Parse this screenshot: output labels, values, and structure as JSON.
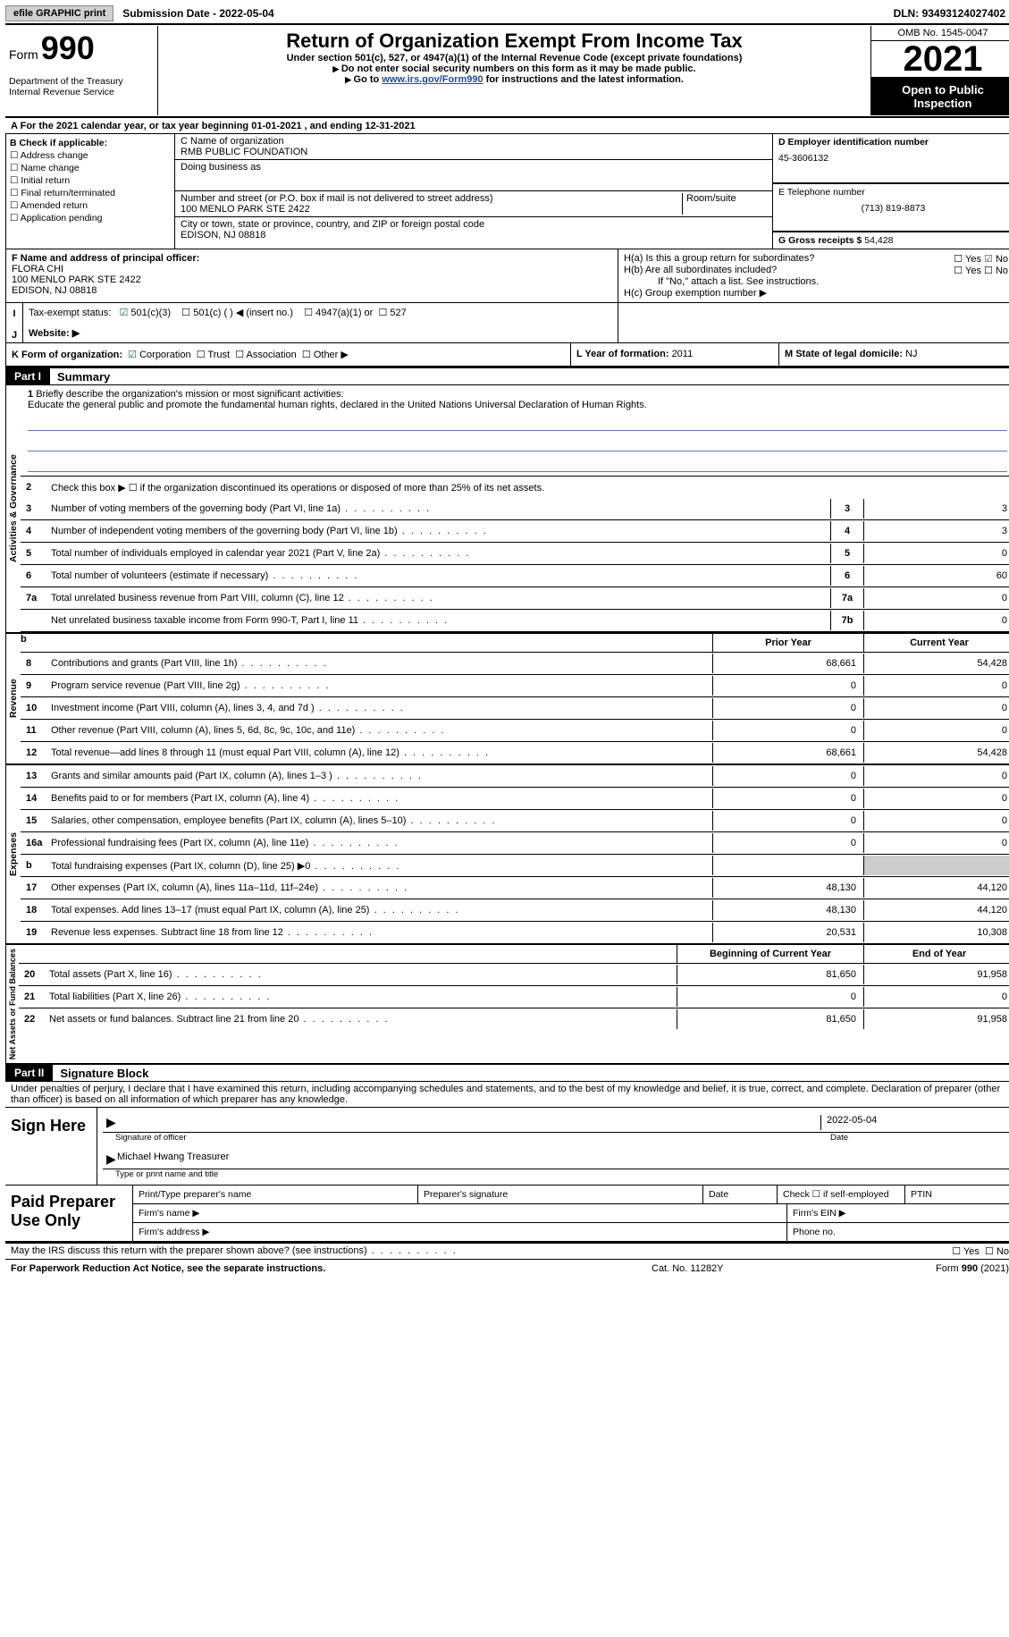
{
  "topbar": {
    "efile_btn": "efile GRAPHIC print",
    "sub_date_label": "Submission Date - ",
    "sub_date": "2022-05-04",
    "dln_label": "DLN: ",
    "dln": "93493124027402"
  },
  "header": {
    "form_label": "Form",
    "form_no": "990",
    "dept": "Department of the Treasury",
    "irs": "Internal Revenue Service",
    "title": "Return of Organization Exempt From Income Tax",
    "subtitle": "Under section 501(c), 527, or 4947(a)(1) of the Internal Revenue Code (except private foundations)",
    "note1": "Do not enter social security numbers on this form as it may be made public.",
    "note2_pre": "Go to ",
    "note2_link": "www.irs.gov/Form990",
    "note2_post": " for instructions and the latest information.",
    "omb": "OMB No. 1545-0047",
    "year": "2021",
    "otp": "Open to Public Inspection"
  },
  "lineA": {
    "text_pre": "For the 2021 calendar year, or tax year beginning ",
    "begin": "01-01-2021",
    "mid": "   , and ending ",
    "end": "12-31-2021"
  },
  "boxB": {
    "label": "B Check if applicable:",
    "items": [
      "Address change",
      "Name change",
      "Initial return",
      "Final return/terminated",
      "Amended return",
      "Application pending"
    ]
  },
  "boxC": {
    "label": "C Name of organization",
    "name": "RMB PUBLIC FOUNDATION",
    "dba_label": "Doing business as",
    "addr_label": "Number and street (or P.O. box if mail is not delivered to street address)",
    "room_label": "Room/suite",
    "addr": "100 MENLO PARK STE 2422",
    "city_label": "City or town, state or province, country, and ZIP or foreign postal code",
    "city": "EDISON, NJ  08818"
  },
  "boxD": {
    "label": "D Employer identification number",
    "ein": "45-3606132"
  },
  "boxE": {
    "label": "E Telephone number",
    "tel": "(713) 819-8873"
  },
  "boxG": {
    "label": "G Gross receipts $ ",
    "val": "54,428"
  },
  "boxF": {
    "label": "F  Name and address of principal officer:",
    "name": "FLORA CHI",
    "addr": "100 MENLO PARK STE 2422",
    "city": "EDISON, NJ  08818"
  },
  "boxH": {
    "a_label": "H(a)  Is this a group return for subordinates?",
    "b_label": "H(b)  Are all subordinates included?",
    "b_note": "If \"No,\" attach a list. See instructions.",
    "c_label": "H(c)  Group exemption number ▶",
    "yes": "Yes",
    "no": "No"
  },
  "status": {
    "label": "Tax-exempt status:",
    "o1": "501(c)(3)",
    "o2": "501(c) (  ) ◀ (insert no.)",
    "o3": "4947(a)(1) or",
    "o4": "527"
  },
  "website": {
    "label": "Website: ▶"
  },
  "korg": {
    "label": "K Form of organization:",
    "o1": "Corporation",
    "o2": "Trust",
    "o3": "Association",
    "o4": "Other ▶",
    "l_label": "L Year of formation: ",
    "l_val": "2011",
    "m_label": "M State of legal domicile: ",
    "m_val": "NJ"
  },
  "part1": {
    "hdr": "Part I",
    "title": "Summary",
    "mission_label": "Briefly describe the organization's mission or most significant activities:",
    "mission": "Educate the general public and promote the fundamental human rights, declared in the United Nations Universal Declaration of Human Rights.",
    "line2": "Check this box ▶ ☐  if the organization discontinued its operations or disposed of more than 25% of its net assets.",
    "rows_ag": [
      {
        "n": "3",
        "d": "Number of voting members of the governing body (Part VI, line 1a)",
        "box": "3",
        "v": "3"
      },
      {
        "n": "4",
        "d": "Number of independent voting members of the governing body (Part VI, line 1b)",
        "box": "4",
        "v": "3"
      },
      {
        "n": "5",
        "d": "Total number of individuals employed in calendar year 2021 (Part V, line 2a)",
        "box": "5",
        "v": "0"
      },
      {
        "n": "6",
        "d": "Total number of volunteers (estimate if necessary)",
        "box": "6",
        "v": "60"
      },
      {
        "n": "7a",
        "d": "Total unrelated business revenue from Part VIII, column (C), line 12",
        "box": "7a",
        "v": "0"
      },
      {
        "n": "",
        "d": "Net unrelated business taxable income from Form 990-T, Part I, line 11",
        "box": "7b",
        "v": "0"
      }
    ],
    "col_prior": "Prior Year",
    "col_current": "Current Year",
    "rows_rev": [
      {
        "n": "8",
        "d": "Contributions and grants (Part VIII, line 1h)",
        "p": "68,661",
        "c": "54,428"
      },
      {
        "n": "9",
        "d": "Program service revenue (Part VIII, line 2g)",
        "p": "0",
        "c": "0"
      },
      {
        "n": "10",
        "d": "Investment income (Part VIII, column (A), lines 3, 4, and 7d )",
        "p": "0",
        "c": "0"
      },
      {
        "n": "11",
        "d": "Other revenue (Part VIII, column (A), lines 5, 6d, 8c, 9c, 10c, and 11e)",
        "p": "0",
        "c": "0"
      },
      {
        "n": "12",
        "d": "Total revenue—add lines 8 through 11 (must equal Part VIII, column (A), line 12)",
        "p": "68,661",
        "c": "54,428"
      }
    ],
    "rows_exp": [
      {
        "n": "13",
        "d": "Grants and similar amounts paid (Part IX, column (A), lines 1–3 )",
        "p": "0",
        "c": "0"
      },
      {
        "n": "14",
        "d": "Benefits paid to or for members (Part IX, column (A), line 4)",
        "p": "0",
        "c": "0"
      },
      {
        "n": "15",
        "d": "Salaries, other compensation, employee benefits (Part IX, column (A), lines 5–10)",
        "p": "0",
        "c": "0"
      },
      {
        "n": "16a",
        "d": "Professional fundraising fees (Part IX, column (A), line 11e)",
        "p": "0",
        "c": "0"
      },
      {
        "n": "b",
        "d": "Total fundraising expenses (Part IX, column (D), line 25) ▶0",
        "p": "GRAY",
        "c": "GRAY"
      },
      {
        "n": "17",
        "d": "Other expenses (Part IX, column (A), lines 11a–11d, 11f–24e)",
        "p": "48,130",
        "c": "44,120"
      },
      {
        "n": "18",
        "d": "Total expenses. Add lines 13–17 (must equal Part IX, column (A), line 25)",
        "p": "48,130",
        "c": "44,120"
      },
      {
        "n": "19",
        "d": "Revenue less expenses. Subtract line 18 from line 12",
        "p": "20,531",
        "c": "10,308"
      }
    ],
    "col_begin": "Beginning of Current Year",
    "col_end": "End of Year",
    "rows_na": [
      {
        "n": "20",
        "d": "Total assets (Part X, line 16)",
        "p": "81,650",
        "c": "91,958"
      },
      {
        "n": "21",
        "d": "Total liabilities (Part X, line 26)",
        "p": "0",
        "c": "0"
      },
      {
        "n": "22",
        "d": "Net assets or fund balances. Subtract line 21 from line 20",
        "p": "81,650",
        "c": "91,958"
      }
    ],
    "vlab_ag": "Activities & Governance",
    "vlab_rev": "Revenue",
    "vlab_exp": "Expenses",
    "vlab_na": "Net Assets or Fund Balances"
  },
  "part2": {
    "hdr": "Part II",
    "title": "Signature Block",
    "perjury": "Under penalties of perjury, I declare that I have examined this return, including accompanying schedules and statements, and to the best of my knowledge and belief, it is true, correct, and complete. Declaration of preparer (other than officer) is based on all information of which preparer has any knowledge.",
    "sign_here": "Sign Here",
    "sig_officer": "Signature of officer",
    "sig_date": "2022-05-04",
    "date_label": "Date",
    "name": "Michael Hwang  Treasurer",
    "name_label": "Type or print name and title",
    "paid_label": "Paid Preparer Use Only",
    "p_name": "Print/Type preparer's name",
    "p_sig": "Preparer's signature",
    "p_date": "Date",
    "p_chk": "Check ☐ if self-employed",
    "p_ptin": "PTIN",
    "firm_name": "Firm's name  ▶",
    "firm_ein": "Firm's EIN ▶",
    "firm_addr": "Firm's address ▶",
    "phone": "Phone no.",
    "may": "May the IRS discuss this return with the preparer shown above? (see instructions)",
    "yes": "Yes",
    "no": "No"
  },
  "footer": {
    "left": "For Paperwork Reduction Act Notice, see the separate instructions.",
    "mid": "Cat. No. 11282Y",
    "right": "Form 990 (2021)"
  }
}
